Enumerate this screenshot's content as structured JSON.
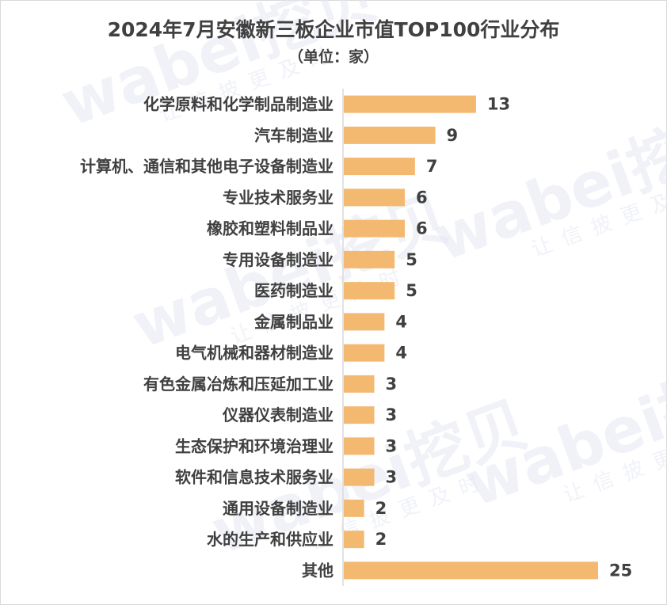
{
  "chart_data": {
    "type": "bar",
    "orientation": "horizontal",
    "title": "2024年7月安徽新三板企业市值TOP100行业分布",
    "subtitle": "（单位：家）",
    "categories": [
      "化学原料和化学制品制造业",
      "汽车制造业",
      "计算机、通信和其他电子设备制造业",
      "专业技术服务业",
      "橡胶和塑料制品业",
      "专用设备制造业",
      "医药制造业",
      "金属制品业",
      "电气机械和器材制造业",
      "有色金属冶炼和压延加工业",
      "仪器仪表制造业",
      "生态保护和环境治理业",
      "软件和信息技术服务业",
      "通用设备制造业",
      "水的生产和供应业",
      "其他"
    ],
    "values": [
      13,
      9,
      7,
      6,
      6,
      5,
      5,
      4,
      4,
      3,
      3,
      3,
      3,
      2,
      2,
      25
    ],
    "xlim": [
      0,
      25
    ],
    "data_labels": true,
    "grid": false,
    "legend": "none",
    "colors": {
      "bar": "#F4B971",
      "text": "#404040",
      "axis": "#d9d9d9"
    }
  },
  "watermark": {
    "brand": "wabei挖贝",
    "slogan": "让信披更及时"
  }
}
